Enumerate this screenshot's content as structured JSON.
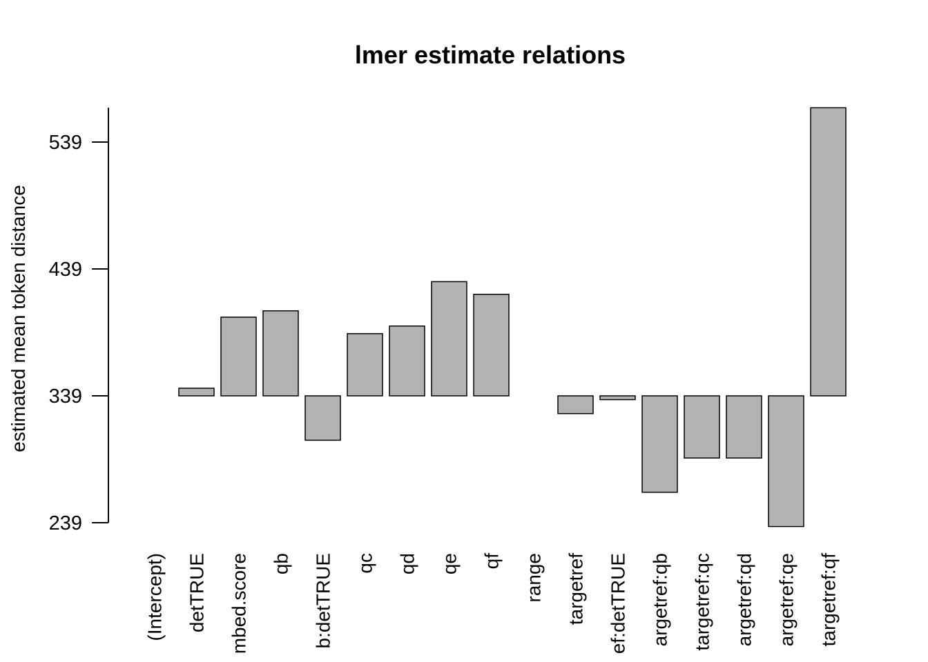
{
  "chart_data": {
    "type": "bar",
    "title": "lmer estimate relations",
    "y_label": "estimated mean token distance",
    "categories": [
      "(Intercept)",
      "detTRUE",
      "mbed.score",
      "qb",
      "b:detTRUE",
      "qc",
      "qd",
      "qe",
      "qf",
      "range",
      "targetref",
      "ef:detTRUE",
      "argetref:qb",
      "targetref:qc",
      "argetref:qd",
      "argetref:qe",
      "targetref:qf"
    ],
    "values": [
      339,
      345,
      401,
      406,
      304,
      388,
      394,
      429,
      419,
      339,
      325,
      336,
      263,
      290,
      290,
      236,
      566
    ],
    "baseline": 339,
    "color": "#b3b3b3",
    "ylim": [
      230,
      566
    ],
    "yticks": [
      239,
      339,
      439,
      539
    ],
    "grid": false
  }
}
